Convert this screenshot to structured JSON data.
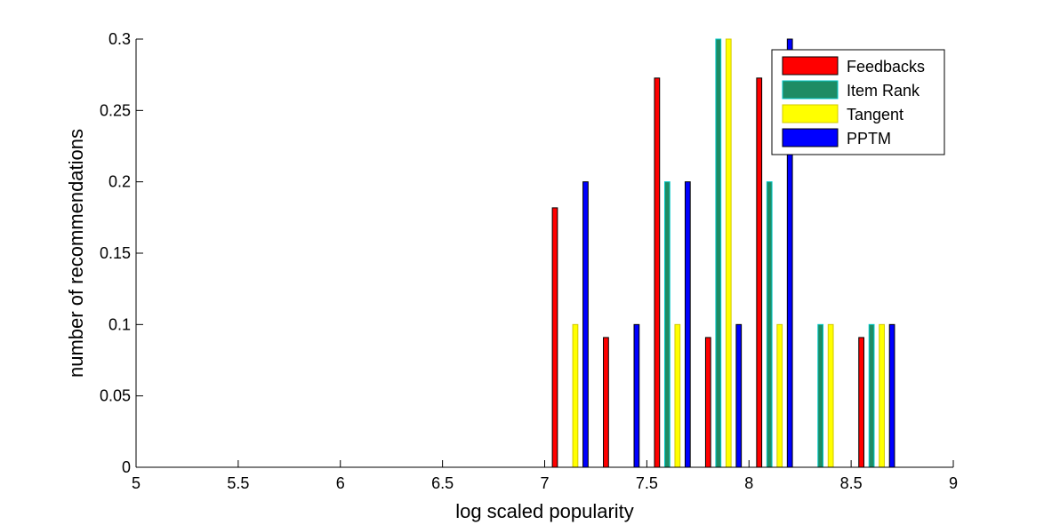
{
  "chart_data": {
    "type": "bar",
    "title": "",
    "xlabel": "log scaled popularity",
    "ylabel": "number of recommendations",
    "xlim": [
      5,
      9
    ],
    "ylim": [
      0,
      0.3
    ],
    "xticks": [
      "5",
      "5.5",
      "6",
      "6.5",
      "7",
      "7.5",
      "8",
      "8.5",
      "9"
    ],
    "yticks": [
      "0",
      "0.05",
      "0.1",
      "0.15",
      "0.2",
      "0.25",
      "0.3"
    ],
    "grid": false,
    "legend_position": "top-right",
    "bin_centers": [
      5.125,
      5.375,
      5.625,
      5.875,
      6.125,
      6.375,
      6.625,
      6.875,
      7.125,
      7.375,
      7.625,
      7.875,
      8.125,
      8.375,
      8.625,
      8.875
    ],
    "series": [
      {
        "name": "Feedbacks",
        "color": "#ff0000",
        "edge": "#000000",
        "values": [
          0,
          0,
          0,
          0,
          0,
          0,
          0,
          0,
          0.1818,
          0.0909,
          0.2727,
          0.0909,
          0.2727,
          0,
          0.0909,
          0
        ]
      },
      {
        "name": "Item Rank",
        "color": "#1e8c64",
        "edge": "#00c8c8",
        "values": [
          0,
          0,
          0,
          0,
          0,
          0,
          0,
          0,
          0,
          0,
          0.2,
          0.3,
          0.2,
          0.1,
          0.1,
          0
        ]
      },
      {
        "name": "Tangent",
        "color": "#ffff00",
        "edge": "#d2c800",
        "values": [
          0,
          0,
          0,
          0,
          0,
          0,
          0,
          0,
          0.1,
          0,
          0.1,
          0.3,
          0.1,
          0.1,
          0.1,
          0
        ]
      },
      {
        "name": "PPTM",
        "color": "#0000ff",
        "edge": "#000000",
        "values": [
          0,
          0,
          0,
          0,
          0,
          0,
          0,
          0,
          0.2,
          0.1,
          0.2,
          0.1,
          0.3,
          0,
          0.1,
          0
        ]
      }
    ]
  }
}
